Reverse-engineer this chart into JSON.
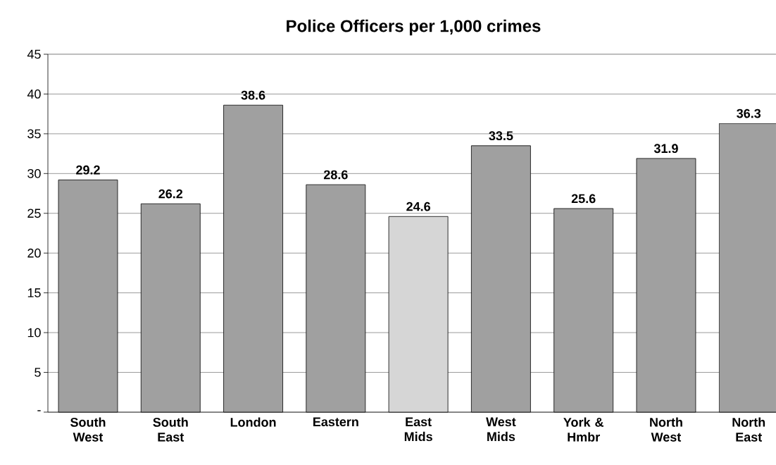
{
  "chart_data": {
    "type": "bar",
    "title": "Police Officers per 1,000 crimes",
    "categories": [
      "South West",
      "South East",
      "London",
      "Eastern",
      "East Mids",
      "West Mids",
      "York & Hmbr",
      "North West",
      "North East"
    ],
    "values": [
      29.2,
      26.2,
      38.6,
      28.6,
      24.6,
      33.5,
      25.6,
      31.9,
      36.3
    ],
    "colors": [
      "#a0a0a0",
      "#a0a0a0",
      "#a0a0a0",
      "#a0a0a0",
      "#d6d6d6",
      "#a0a0a0",
      "#a0a0a0",
      "#a0a0a0",
      "#a0a0a0"
    ],
    "ylim": [
      0,
      45
    ],
    "yticks": [
      {
        "value": 0,
        "label": "-"
      },
      5,
      10,
      15,
      20,
      25,
      30,
      35,
      40,
      45
    ],
    "grid": "y",
    "data_labels": true
  }
}
